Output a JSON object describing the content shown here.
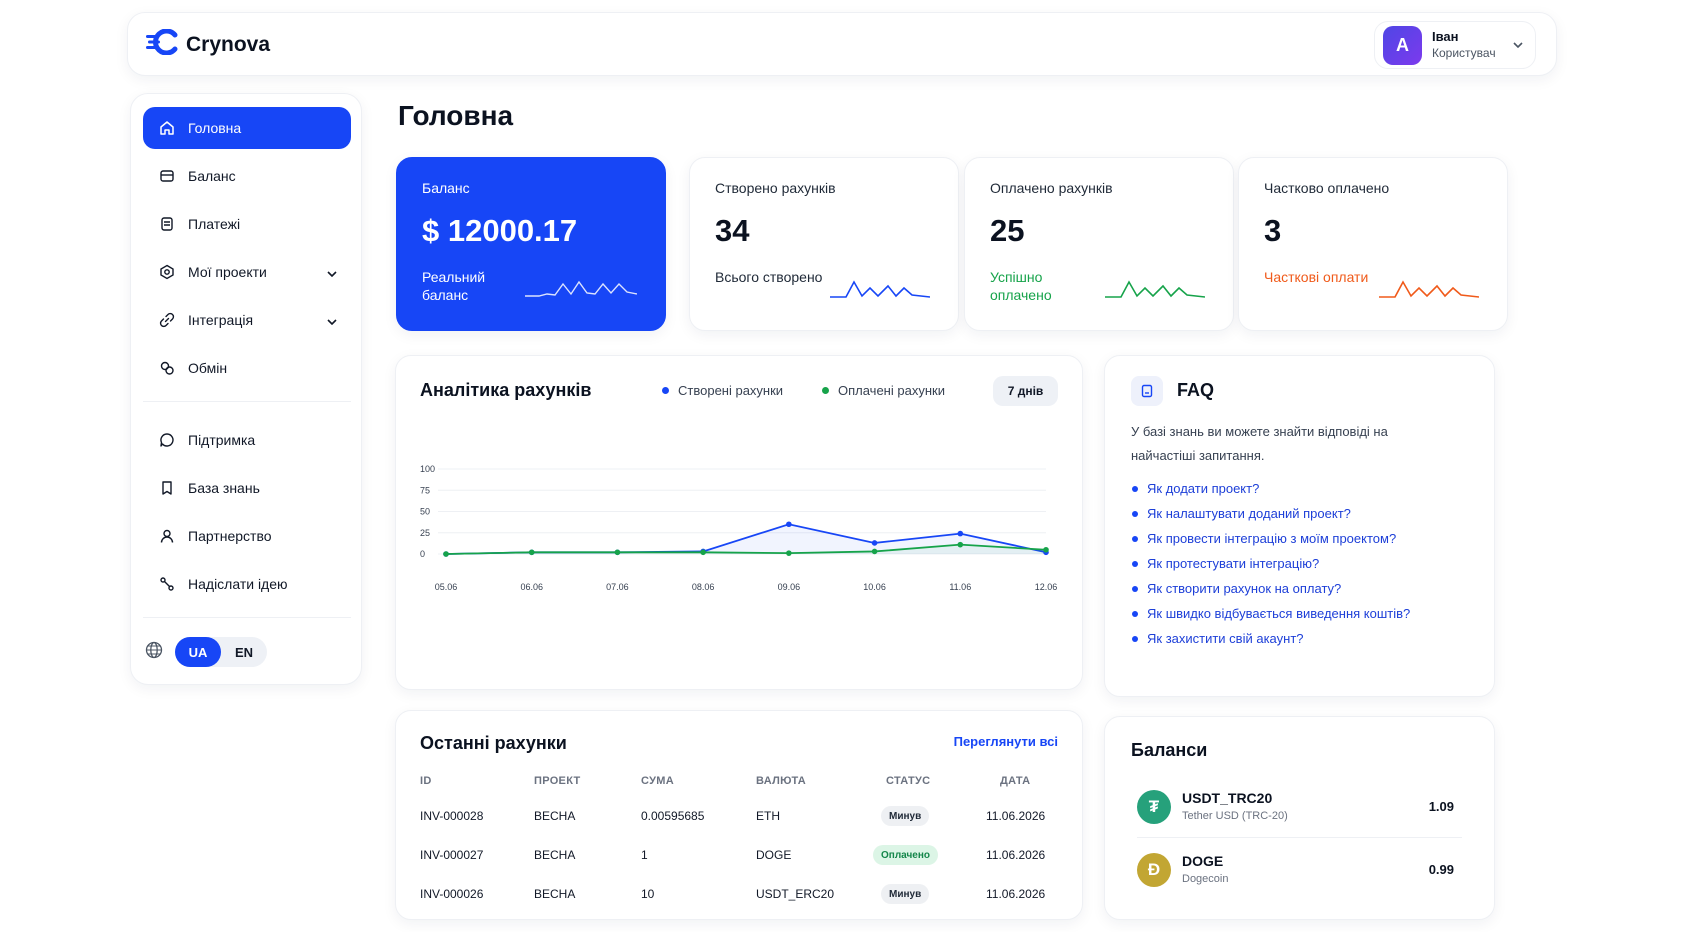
{
  "header": {
    "brand": "Crynova",
    "user": {
      "initial": "A",
      "name": "Іван",
      "role": "Користувач"
    }
  },
  "sidebar": {
    "items": [
      {
        "label": "Головна",
        "icon": "home-icon",
        "active": true
      },
      {
        "label": "Баланс",
        "icon": "wallet-icon"
      },
      {
        "label": "Платежі",
        "icon": "payments-icon"
      },
      {
        "label": "Мої проекти",
        "icon": "projects-icon",
        "expandable": true
      },
      {
        "label": "Інтеграція",
        "icon": "integration-icon",
        "expandable": true
      },
      {
        "label": "Обмін",
        "icon": "exchange-icon"
      }
    ],
    "secondary": [
      {
        "label": "Підтримка",
        "icon": "chat-icon"
      },
      {
        "label": "База знань",
        "icon": "book-icon"
      },
      {
        "label": "Партнерство",
        "icon": "user-icon"
      },
      {
        "label": "Надіслати ідею",
        "icon": "idea-icon"
      }
    ],
    "languages": [
      "UA",
      "EN"
    ],
    "selected_language": "UA"
  },
  "page": {
    "title": "Головна"
  },
  "stats": [
    {
      "label": "Баланс",
      "value": "$ 12000.17",
      "sub": "Реальний баланс",
      "color": "#ffffff"
    },
    {
      "label": "Створено рахунків",
      "value": "34",
      "sub": "Всього створено",
      "color": "#1746f6"
    },
    {
      "label": "Оплачено рахунків",
      "value": "25",
      "sub": "Успішно оплачено",
      "color": "#16a34a"
    },
    {
      "label": "Частково оплачено",
      "value": "3",
      "sub": "Часткові оплати",
      "color": "#f05a1a"
    }
  ],
  "analytics": {
    "title": "Аналітика рахунків",
    "range": "7 днів",
    "legend": [
      {
        "name": "Створені рахунки",
        "color": "#1746f6"
      },
      {
        "name": "Оплачені рахунки",
        "color": "#16a34a"
      }
    ]
  },
  "chart_data": {
    "type": "line",
    "x": [
      "05.06",
      "06.06",
      "07.06",
      "08.06",
      "09.06",
      "10.06",
      "11.06",
      "12.06"
    ],
    "series": [
      {
        "name": "Створені рахунки",
        "values": [
          0,
          2,
          2,
          3,
          35,
          13,
          24,
          2
        ]
      },
      {
        "name": "Оплачені рахунки",
        "values": [
          0,
          2,
          2,
          2,
          1,
          3,
          11,
          5
        ]
      }
    ],
    "yticks": [
      0,
      25,
      50,
      75,
      100
    ],
    "ylim": [
      0,
      100
    ],
    "grid": true
  },
  "faq": {
    "title": "FAQ",
    "description": "У базі знань ви можете знайти відповіді на найчастіші запитання.",
    "items": [
      "Як додати проект?",
      "Як налаштувати доданий проект?",
      "Як провести інтеграцію з моїм проектом?",
      "Як протестувати інтеграцію?",
      "Як створити рахунок на оплату?",
      "Як швидко відбувається виведення коштів?",
      "Як захистити свій акаунт?"
    ]
  },
  "invoices": {
    "title": "Останні рахунки",
    "view_all": "Переглянути всі",
    "columns": [
      "ID",
      "ПРОЕКТ",
      "СУМА",
      "ВАЛЮТА",
      "СТАТУС",
      "ДАТА"
    ],
    "rows": [
      {
        "id": "INV-000028",
        "project": "BECHA",
        "amount": "0.00595685",
        "currency": "ETH",
        "status": "Минув",
        "status_kind": "expired",
        "date": "11.06.2026"
      },
      {
        "id": "INV-000027",
        "project": "BECHA",
        "amount": "1",
        "currency": "DOGE",
        "status": "Оплачено",
        "status_kind": "paid",
        "date": "11.06.2026"
      },
      {
        "id": "INV-000026",
        "project": "BECHA",
        "amount": "10",
        "currency": "USDT_ERC20",
        "status": "Минув",
        "status_kind": "expired",
        "date": "11.06.2026"
      }
    ]
  },
  "balances": {
    "title": "Баланси",
    "items": [
      {
        "name": "USDT_TRC20",
        "sub": "Tether USD (TRC-20)",
        "value": "1.09",
        "icon": "tether-icon",
        "glyph": "₮",
        "color": "#26a17b"
      },
      {
        "name": "DOGE",
        "sub": "Dogecoin",
        "value": "0.99",
        "icon": "dogecoin-icon",
        "glyph": "Ð",
        "color": "#c2a633"
      }
    ]
  }
}
